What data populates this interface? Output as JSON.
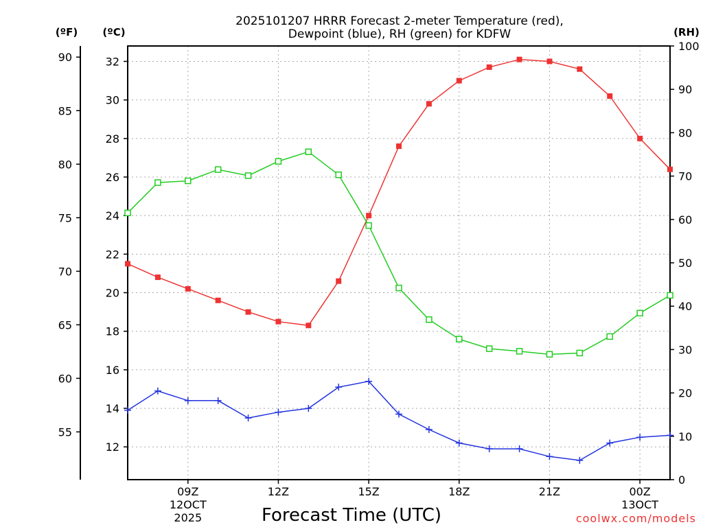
{
  "chart_data": {
    "type": "line",
    "title": [
      "2025101207 HRRR Forecast 2-meter Temperature (red),",
      "Dewpoint (blue), RH (green) for KDFW"
    ],
    "xlabel": "Forecast Time (UTC)",
    "credit": "coolwx.com/models",
    "units": {
      "fahrenheit": "(ºF)",
      "celsius": "(ºC)",
      "rh": "(RH)"
    },
    "x_hours": [
      7,
      8,
      9,
      10,
      11,
      12,
      13,
      14,
      15,
      16,
      17,
      18,
      19,
      20,
      21,
      22,
      23,
      24,
      25
    ],
    "xlim": [
      7,
      25
    ],
    "x_ticks": [
      {
        "hour": 9,
        "lines": [
          "09Z",
          "12OCT",
          "2025"
        ]
      },
      {
        "hour": 12,
        "lines": [
          "12Z"
        ]
      },
      {
        "hour": 15,
        "lines": [
          "15Z"
        ]
      },
      {
        "hour": 18,
        "lines": [
          "18Z"
        ]
      },
      {
        "hour": 21,
        "lines": [
          "21Z"
        ]
      },
      {
        "hour": 24,
        "lines": [
          "00Z",
          "13OCT"
        ]
      }
    ],
    "celsius_axis": {
      "ylim": [
        10.3,
        32.8
      ],
      "ticks": [
        12,
        14,
        16,
        18,
        20,
        22,
        24,
        26,
        28,
        30,
        32
      ]
    },
    "fahrenheit_axis": {
      "ylim": [
        50.54,
        91.04
      ],
      "ticks": [
        55,
        60,
        65,
        70,
        75,
        80,
        85,
        90
      ]
    },
    "rh_axis": {
      "ylim": [
        0,
        100
      ],
      "ticks": [
        0,
        10,
        20,
        30,
        40,
        50,
        60,
        70,
        80,
        90,
        100
      ]
    },
    "series": [
      {
        "name": "Temperature",
        "axis": "celsius",
        "color": "#ee3333",
        "marker": "filled-square",
        "values": [
          21.5,
          20.8,
          20.2,
          19.6,
          19.0,
          18.5,
          18.3,
          20.6,
          24.0,
          27.6,
          29.8,
          31.0,
          31.7,
          32.1,
          32.0,
          31.6,
          30.2,
          28.0,
          26.4
        ]
      },
      {
        "name": "Dewpoint",
        "axis": "celsius",
        "color": "#2233dd",
        "marker": "plus",
        "values": [
          13.9,
          14.9,
          14.4,
          14.4,
          13.5,
          13.8,
          14.0,
          15.1,
          15.4,
          13.7,
          12.9,
          12.2,
          11.9,
          11.9,
          11.5,
          11.3,
          12.2,
          12.5,
          12.6
        ]
      },
      {
        "name": "RH",
        "axis": "rh",
        "color": "#22cc22",
        "marker": "open-square",
        "values": [
          61.5,
          68.5,
          68.9,
          71.5,
          70.1,
          73.4,
          75.6,
          70.3,
          58.6,
          44.2,
          36.9,
          32.4,
          30.2,
          29.6,
          28.9,
          29.2,
          33.0,
          38.4,
          42.5
        ]
      }
    ]
  }
}
